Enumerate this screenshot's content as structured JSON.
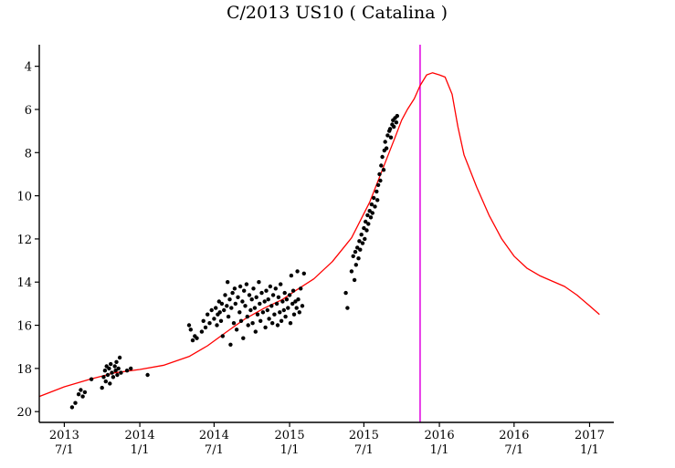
{
  "chart_data": {
    "type": "scatter",
    "title": "C/2013 US10 ( Catalina )",
    "xlabel": "",
    "ylabel": "",
    "x_axis": {
      "kind": "date",
      "range": [
        "2013-05-01",
        "2017-03-01"
      ],
      "ticks": [
        {
          "date": "2013-07-01",
          "year": "2013",
          "md": "7/1"
        },
        {
          "date": "2014-01-01",
          "year": "2014",
          "md": "1/1"
        },
        {
          "date": "2014-07-01",
          "year": "2014",
          "md": "7/1"
        },
        {
          "date": "2015-01-01",
          "year": "2015",
          "md": "1/1"
        },
        {
          "date": "2015-07-01",
          "year": "2015",
          "md": "7/1"
        },
        {
          "date": "2016-01-01",
          "year": "2016",
          "md": "1/1"
        },
        {
          "date": "2016-07-01",
          "year": "2016",
          "md": "7/1"
        },
        {
          "date": "2017-01-01",
          "year": "2017",
          "md": "1/1"
        }
      ]
    },
    "y_axis": {
      "inverted": true,
      "range": [
        3,
        20.5
      ],
      "ticks": [
        4,
        6,
        8,
        10,
        12,
        14,
        16,
        18,
        20
      ]
    },
    "marker_line": {
      "date": "2015-11-15",
      "color": "#e000e0"
    },
    "grid": false,
    "legend": "none",
    "series": [
      {
        "kind": "curve",
        "color": "#ff0000",
        "points": [
          [
            "2013-05-01",
            19.3
          ],
          [
            "2013-07-01",
            18.85
          ],
          [
            "2013-09-01",
            18.5
          ],
          [
            "2013-11-01",
            18.2
          ],
          [
            "2014-01-01",
            18.05
          ],
          [
            "2014-03-01",
            17.85
          ],
          [
            "2014-05-01",
            17.45
          ],
          [
            "2014-06-15",
            16.95
          ],
          [
            "2014-08-01",
            16.3
          ],
          [
            "2014-09-15",
            15.7
          ],
          [
            "2014-11-01",
            15.2
          ],
          [
            "2014-12-15",
            14.8
          ],
          [
            "2015-01-15",
            14.4
          ],
          [
            "2015-03-01",
            13.85
          ],
          [
            "2015-04-15",
            13.05
          ],
          [
            "2015-06-01",
            11.95
          ],
          [
            "2015-07-15",
            10.3
          ],
          [
            "2015-08-15",
            8.8
          ],
          [
            "2015-09-15",
            7.3
          ],
          [
            "2015-10-01",
            6.5
          ],
          [
            "2015-10-15",
            6.0
          ],
          [
            "2015-11-01",
            5.5
          ],
          [
            "2015-11-15",
            4.9
          ],
          [
            "2015-12-01",
            4.4
          ],
          [
            "2015-12-15",
            4.3
          ],
          [
            "2016-01-01",
            4.4
          ],
          [
            "2016-01-15",
            4.5
          ],
          [
            "2016-02-01",
            5.3
          ],
          [
            "2016-02-15",
            6.8
          ],
          [
            "2016-03-01",
            8.1
          ],
          [
            "2016-04-01",
            9.6
          ],
          [
            "2016-05-01",
            10.9
          ],
          [
            "2016-06-01",
            12.0
          ],
          [
            "2016-07-01",
            12.8
          ],
          [
            "2016-08-01",
            13.35
          ],
          [
            "2016-09-01",
            13.7
          ],
          [
            "2016-10-01",
            13.95
          ],
          [
            "2016-11-01",
            14.2
          ],
          [
            "2016-12-01",
            14.6
          ],
          [
            "2017-01-01",
            15.1
          ],
          [
            "2017-01-25",
            15.5
          ]
        ]
      },
      {
        "kind": "observations",
        "color": "#000000",
        "points": [
          [
            "2013-07-20",
            19.8
          ],
          [
            "2013-07-28",
            19.6
          ],
          [
            "2013-08-05",
            19.2
          ],
          [
            "2013-08-10",
            19.0
          ],
          [
            "2013-08-15",
            19.3
          ],
          [
            "2013-08-20",
            19.1
          ],
          [
            "2013-09-05",
            18.5
          ],
          [
            "2013-10-01",
            18.9
          ],
          [
            "2013-10-05",
            18.4
          ],
          [
            "2013-10-08",
            18.1
          ],
          [
            "2013-10-10",
            18.6
          ],
          [
            "2013-10-12",
            17.9
          ],
          [
            "2013-10-15",
            18.3
          ],
          [
            "2013-10-18",
            18.0
          ],
          [
            "2013-10-20",
            18.7
          ],
          [
            "2013-10-22",
            17.8
          ],
          [
            "2013-10-25",
            18.2
          ],
          [
            "2013-10-28",
            18.4
          ],
          [
            "2013-11-01",
            17.9
          ],
          [
            "2013-11-03",
            18.1
          ],
          [
            "2013-11-05",
            17.7
          ],
          [
            "2013-11-07",
            18.3
          ],
          [
            "2013-11-10",
            18.0
          ],
          [
            "2013-11-13",
            17.5
          ],
          [
            "2013-11-16",
            18.2
          ],
          [
            "2013-12-01",
            18.1
          ],
          [
            "2013-12-10",
            18.0
          ],
          [
            "2014-01-20",
            18.3
          ],
          [
            "2014-05-01",
            16.0
          ],
          [
            "2014-05-05",
            16.2
          ],
          [
            "2014-05-10",
            16.7
          ],
          [
            "2014-05-15",
            16.5
          ],
          [
            "2014-05-20",
            16.6
          ],
          [
            "2014-06-01",
            16.3
          ],
          [
            "2014-06-05",
            15.8
          ],
          [
            "2014-06-10",
            16.1
          ],
          [
            "2014-06-15",
            15.5
          ],
          [
            "2014-06-20",
            15.9
          ],
          [
            "2014-06-25",
            15.3
          ],
          [
            "2014-07-01",
            15.7
          ],
          [
            "2014-07-05",
            15.2
          ],
          [
            "2014-07-08",
            16.0
          ],
          [
            "2014-07-10",
            15.5
          ],
          [
            "2014-07-13",
            14.9
          ],
          [
            "2014-07-15",
            15.4
          ],
          [
            "2014-07-18",
            15.8
          ],
          [
            "2014-07-20",
            15.0
          ],
          [
            "2014-07-22",
            16.5
          ],
          [
            "2014-07-25",
            15.3
          ],
          [
            "2014-07-28",
            14.6
          ],
          [
            "2014-08-01",
            15.1
          ],
          [
            "2014-08-03",
            14.0
          ],
          [
            "2014-08-05",
            15.6
          ],
          [
            "2014-08-08",
            14.8
          ],
          [
            "2014-08-10",
            16.9
          ],
          [
            "2014-08-12",
            15.2
          ],
          [
            "2014-08-15",
            14.5
          ],
          [
            "2014-08-18",
            15.9
          ],
          [
            "2014-08-20",
            14.3
          ],
          [
            "2014-08-22",
            15.0
          ],
          [
            "2014-08-25",
            16.2
          ],
          [
            "2014-08-28",
            14.7
          ],
          [
            "2014-09-01",
            15.4
          ],
          [
            "2014-09-03",
            14.2
          ],
          [
            "2014-09-05",
            15.8
          ],
          [
            "2014-09-08",
            14.9
          ],
          [
            "2014-09-10",
            16.6
          ],
          [
            "2014-09-12",
            14.4
          ],
          [
            "2014-09-15",
            15.1
          ],
          [
            "2014-09-18",
            14.1
          ],
          [
            "2014-09-20",
            15.6
          ],
          [
            "2014-09-22",
            16.0
          ],
          [
            "2014-09-25",
            14.6
          ],
          [
            "2014-09-28",
            15.3
          ],
          [
            "2014-10-01",
            14.8
          ],
          [
            "2014-10-03",
            15.9
          ],
          [
            "2014-10-05",
            14.3
          ],
          [
            "2014-10-08",
            15.2
          ],
          [
            "2014-10-10",
            16.3
          ],
          [
            "2014-10-12",
            14.7
          ],
          [
            "2014-10-15",
            15.5
          ],
          [
            "2014-10-18",
            14.0
          ],
          [
            "2014-10-20",
            15.0
          ],
          [
            "2014-10-22",
            15.8
          ],
          [
            "2014-10-25",
            14.5
          ],
          [
            "2014-10-28",
            15.4
          ],
          [
            "2014-11-01",
            14.9
          ],
          [
            "2014-11-03",
            16.1
          ],
          [
            "2014-11-05",
            14.4
          ],
          [
            "2014-11-08",
            15.3
          ],
          [
            "2014-11-10",
            14.8
          ],
          [
            "2014-11-12",
            15.7
          ],
          [
            "2014-11-15",
            14.2
          ],
          [
            "2014-11-18",
            15.1
          ],
          [
            "2014-11-20",
            15.9
          ],
          [
            "2014-11-22",
            14.6
          ],
          [
            "2014-11-25",
            15.5
          ],
          [
            "2014-11-28",
            14.3
          ],
          [
            "2014-12-01",
            15.0
          ],
          [
            "2014-12-03",
            16.0
          ],
          [
            "2014-12-05",
            14.7
          ],
          [
            "2014-12-08",
            15.4
          ],
          [
            "2014-12-10",
            14.1
          ],
          [
            "2014-12-12",
            15.8
          ],
          [
            "2014-12-15",
            14.9
          ],
          [
            "2014-12-18",
            15.3
          ],
          [
            "2014-12-20",
            14.5
          ],
          [
            "2014-12-22",
            15.6
          ],
          [
            "2014-12-25",
            14.8
          ],
          [
            "2014-12-28",
            15.2
          ],
          [
            "2015-01-01",
            14.6
          ],
          [
            "2015-01-03",
            15.9
          ],
          [
            "2015-01-05",
            13.7
          ],
          [
            "2015-01-08",
            15.0
          ],
          [
            "2015-01-10",
            14.4
          ],
          [
            "2015-01-12",
            15.5
          ],
          [
            "2015-01-15",
            14.9
          ],
          [
            "2015-01-18",
            15.2
          ],
          [
            "2015-01-20",
            13.5
          ],
          [
            "2015-01-22",
            14.8
          ],
          [
            "2015-01-25",
            15.4
          ],
          [
            "2015-01-28",
            14.3
          ],
          [
            "2015-02-01",
            15.1
          ],
          [
            "2015-02-05",
            13.6
          ],
          [
            "2015-05-18",
            14.5
          ],
          [
            "2015-05-22",
            15.2
          ],
          [
            "2015-06-01",
            13.5
          ],
          [
            "2015-06-05",
            12.8
          ],
          [
            "2015-06-08",
            13.9
          ],
          [
            "2015-06-10",
            12.6
          ],
          [
            "2015-06-12",
            13.2
          ],
          [
            "2015-06-15",
            12.4
          ],
          [
            "2015-06-18",
            12.9
          ],
          [
            "2015-06-20",
            12.1
          ],
          [
            "2015-06-22",
            12.5
          ],
          [
            "2015-06-25",
            11.8
          ],
          [
            "2015-06-28",
            12.2
          ],
          [
            "2015-07-01",
            11.5
          ],
          [
            "2015-07-03",
            12.0
          ],
          [
            "2015-07-05",
            11.2
          ],
          [
            "2015-07-08",
            11.6
          ],
          [
            "2015-07-10",
            10.9
          ],
          [
            "2015-07-12",
            11.3
          ],
          [
            "2015-07-15",
            10.7
          ],
          [
            "2015-07-18",
            11.0
          ],
          [
            "2015-07-20",
            10.4
          ],
          [
            "2015-07-22",
            10.8
          ],
          [
            "2015-07-25",
            10.1
          ],
          [
            "2015-07-28",
            10.5
          ],
          [
            "2015-08-01",
            9.8
          ],
          [
            "2015-08-03",
            10.2
          ],
          [
            "2015-08-05",
            9.5
          ],
          [
            "2015-08-08",
            9.0
          ],
          [
            "2015-08-10",
            9.3
          ],
          [
            "2015-08-12",
            8.6
          ],
          [
            "2015-08-15",
            8.2
          ],
          [
            "2015-08-18",
            8.8
          ],
          [
            "2015-08-20",
            7.9
          ],
          [
            "2015-08-22",
            7.5
          ],
          [
            "2015-08-25",
            7.8
          ],
          [
            "2015-08-28",
            7.2
          ],
          [
            "2015-09-01",
            7.0
          ],
          [
            "2015-09-03",
            6.9
          ],
          [
            "2015-09-05",
            7.3
          ],
          [
            "2015-09-08",
            6.7
          ],
          [
            "2015-09-10",
            6.5
          ],
          [
            "2015-09-12",
            6.8
          ],
          [
            "2015-09-15",
            6.4
          ],
          [
            "2015-09-18",
            6.6
          ],
          [
            "2015-09-20",
            6.3
          ]
        ]
      }
    ]
  }
}
